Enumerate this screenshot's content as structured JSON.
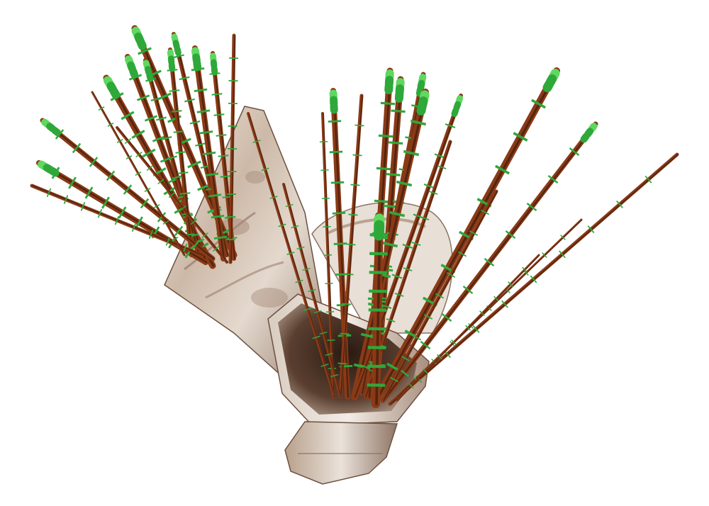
{
  "scene": {
    "colors": {
      "background": "#ffffff",
      "stem": "#8a3a16",
      "stem_dark": "#3a1b0e",
      "band": "#2fa83a",
      "band_light": "#5fd860",
      "vase_light": "#e6ddd4",
      "vase_mid": "#b9a391",
      "vase_dark": "#6b5040",
      "vase_inner": "#3a2820"
    }
  }
}
